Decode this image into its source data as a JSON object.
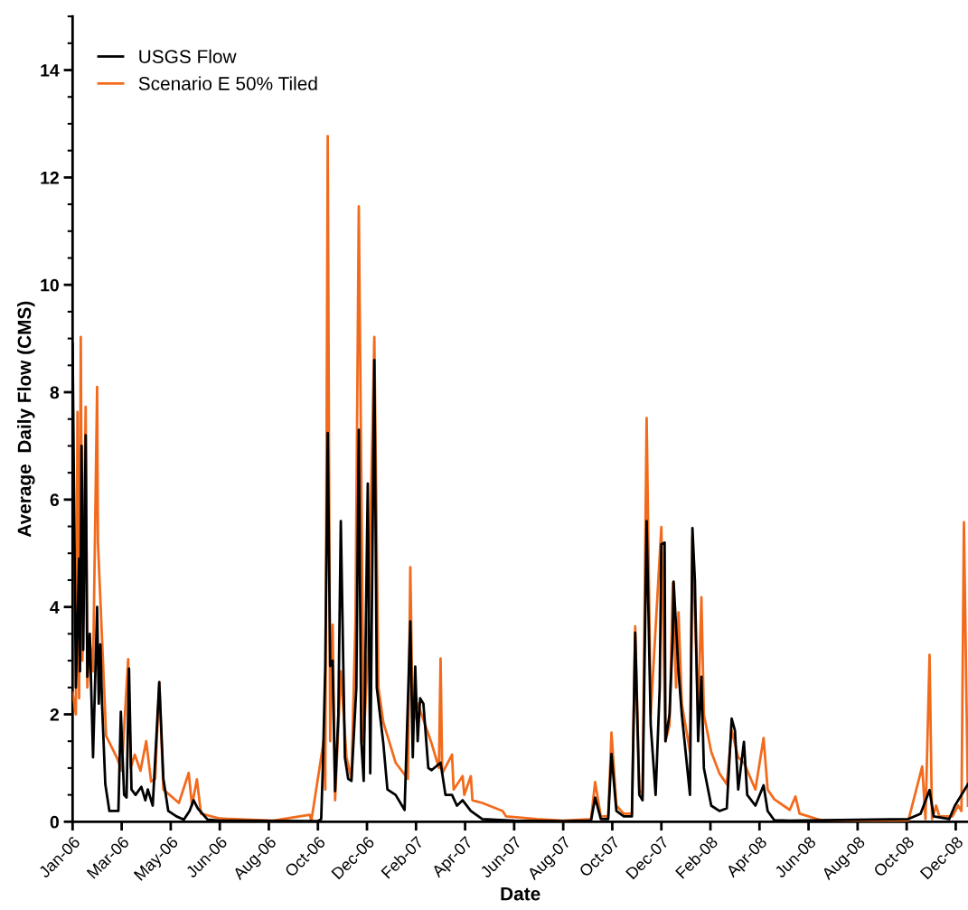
{
  "chart_data": {
    "type": "line",
    "xlabel": "Date",
    "ylabel": "Average  Daily Flow (CMS)",
    "xlim": [
      "2006-01-01",
      "2008-12-31"
    ],
    "ylim": [
      0,
      15
    ],
    "xticks": [
      {
        "value": "2006-01-01",
        "label": "Jan-06"
      },
      {
        "value": "2006-03-02",
        "label": "Mar-06"
      },
      {
        "value": "2006-05-01",
        "label": "May-06"
      },
      {
        "value": "2006-06-30",
        "label": "Jun-06"
      },
      {
        "value": "2006-08-29",
        "label": "Aug-06"
      },
      {
        "value": "2006-10-28",
        "label": "Oct-06"
      },
      {
        "value": "2006-12-27",
        "label": "Dec-06"
      },
      {
        "value": "2007-02-25",
        "label": "Feb-07"
      },
      {
        "value": "2007-04-26",
        "label": "Apr-07"
      },
      {
        "value": "2007-06-25",
        "label": "Jun-07"
      },
      {
        "value": "2007-08-24",
        "label": "Aug-07"
      },
      {
        "value": "2007-10-23",
        "label": "Oct-07"
      },
      {
        "value": "2007-12-22",
        "label": "Dec-07"
      },
      {
        "value": "2008-02-20",
        "label": "Feb-08"
      },
      {
        "value": "2008-04-20",
        "label": "Apr-08"
      },
      {
        "value": "2008-06-19",
        "label": "Jun-08"
      },
      {
        "value": "2008-08-18",
        "label": "Aug-08"
      },
      {
        "value": "2008-10-17",
        "label": "Oct-08"
      },
      {
        "value": "2008-12-16",
        "label": "Dec-08"
      }
    ],
    "yticks": [
      0,
      {
        "value": 0.5,
        "label": null
      },
      {
        "value": 1,
        "label": null
      },
      {
        "value": 1.5,
        "label": null
      },
      2,
      {
        "value": 2.5,
        "label": null
      },
      {
        "value": 3,
        "label": null
      },
      {
        "value": 3.5,
        "label": null
      },
      4,
      {
        "value": 4.5,
        "label": null
      },
      {
        "value": 5,
        "label": null
      },
      {
        "value": 5.5,
        "label": null
      },
      6,
      {
        "value": 6.5,
        "label": null
      },
      {
        "value": 7,
        "label": null
      },
      {
        "value": 7.5,
        "label": null
      },
      8,
      {
        "value": 8.5,
        "label": null
      },
      {
        "value": 9,
        "label": null
      },
      {
        "value": 9.5,
        "label": null
      },
      10,
      {
        "value": 10.5,
        "label": null
      },
      {
        "value": 11,
        "label": null
      },
      {
        "value": 11.5,
        "label": null
      },
      12,
      {
        "value": 12.5,
        "label": null
      },
      {
        "value": 13,
        "label": null
      },
      {
        "value": 13.5,
        "label": null
      },
      14,
      {
        "value": 14.5,
        "label": null
      },
      {
        "value": 15,
        "label": null
      }
    ],
    "grid": false,
    "legend": "top left",
    "marker": "none",
    "line_style": "solid",
    "series": [
      {
        "name": "USGS Flow",
        "color": "#000000",
        "x": [
          "2006-01-01",
          "2006-01-05",
          "2006-01-09",
          "2006-01-10",
          "2006-01-12",
          "2006-01-14",
          "2006-01-17",
          "2006-01-19",
          "2006-01-22",
          "2006-01-26",
          "2006-01-31",
          "2006-02-02",
          "2006-02-04",
          "2006-02-06",
          "2006-02-10",
          "2006-02-15",
          "2006-02-26",
          "2006-03-01",
          "2006-03-05",
          "2006-03-08",
          "2006-03-11",
          "2006-03-14",
          "2006-03-19",
          "2006-03-26",
          "2006-03-31",
          "2006-04-03",
          "2006-04-09",
          "2006-04-17",
          "2006-04-22",
          "2006-04-28",
          "2006-05-08",
          "2006-05-17",
          "2006-05-24",
          "2006-05-29",
          "2006-06-03",
          "2006-06-15",
          "2006-06-30",
          "2006-10-28",
          "2006-11-01",
          "2006-11-03",
          "2006-11-06",
          "2006-11-09",
          "2006-11-12",
          "2006-11-15",
          "2006-11-18",
          "2006-11-22",
          "2006-11-25",
          "2006-11-30",
          "2006-12-04",
          "2006-12-08",
          "2006-12-14",
          "2006-12-17",
          "2006-12-20",
          "2006-12-23",
          "2006-12-28",
          "2006-12-31",
          "2007-01-05",
          "2007-01-08",
          "2007-01-16",
          "2007-01-21",
          "2007-01-31",
          "2007-02-11",
          "2007-02-18",
          "2007-02-21",
          "2007-02-24",
          "2007-02-27",
          "2007-03-02",
          "2007-03-06",
          "2007-03-12",
          "2007-03-16",
          "2007-03-27",
          "2007-04-02",
          "2007-04-10",
          "2007-04-16",
          "2007-04-23",
          "2007-05-03",
          "2007-05-17",
          "2007-06-25",
          "2007-08-24",
          "2007-09-27",
          "2007-10-02",
          "2007-10-09",
          "2007-10-18",
          "2007-10-22",
          "2007-10-28",
          "2007-11-06",
          "2007-11-16",
          "2007-11-20",
          "2007-11-25",
          "2007-11-29",
          "2007-12-04",
          "2007-12-09",
          "2007-12-15",
          "2007-12-20",
          "2007-12-22",
          "2007-12-26",
          "2007-12-27",
          "2008-01-01",
          "2008-01-05",
          "2008-01-06",
          "2008-01-12",
          "2008-01-16",
          "2008-01-26",
          "2008-01-29",
          "2008-02-01",
          "2008-02-05",
          "2008-02-09",
          "2008-02-12",
          "2008-02-21",
          "2008-03-02",
          "2008-03-11",
          "2008-03-17",
          "2008-03-21",
          "2008-03-25",
          "2008-04-01",
          "2008-04-05",
          "2008-04-15",
          "2008-04-25",
          "2008-04-30",
          "2008-05-08",
          "2008-05-27",
          "2008-10-19",
          "2008-11-03",
          "2008-11-14",
          "2008-11-19",
          "2008-12-08",
          "2008-12-15",
          "2008-12-23",
          "2008-12-31"
        ],
        "values": [
          8.9,
          2.5,
          4.9,
          2.8,
          7.0,
          3.2,
          7.2,
          2.7,
          3.5,
          1.2,
          4.0,
          2.2,
          3.3,
          2.2,
          0.7,
          0.2,
          0.2,
          2.05,
          0.5,
          0.45,
          2.85,
          0.6,
          0.5,
          0.65,
          0.4,
          0.6,
          0.3,
          2.6,
          0.8,
          0.2,
          0.1,
          0.04,
          0.2,
          0.4,
          0.25,
          0.04,
          0.02,
          0.01,
          0.05,
          1.0,
          2.9,
          7.24,
          2.9,
          3.0,
          0.57,
          2.0,
          5.6,
          1.2,
          0.8,
          0.76,
          2.5,
          7.3,
          1.5,
          0.76,
          6.3,
          0.9,
          8.6,
          2.5,
          1.46,
          0.6,
          0.5,
          0.22,
          3.73,
          1.2,
          2.89,
          1.5,
          2.3,
          2.2,
          1.0,
          0.96,
          1.1,
          0.5,
          0.5,
          0.3,
          0.4,
          0.2,
          0.05,
          0.02,
          0.01,
          0.02,
          0.45,
          0.05,
          0.05,
          1.26,
          0.2,
          0.1,
          0.1,
          3.52,
          0.5,
          0.4,
          5.6,
          1.8,
          0.5,
          2.5,
          5.17,
          5.2,
          1.5,
          2.0,
          3.5,
          4.47,
          2.8,
          2.0,
          0.5,
          5.47,
          4.5,
          1.5,
          2.7,
          1.0,
          0.3,
          0.2,
          0.25,
          1.92,
          1.7,
          0.6,
          1.49,
          0.5,
          0.3,
          0.68,
          0.2,
          0.03,
          0.02,
          0.05,
          0.15,
          0.59,
          0.1,
          0.05,
          0.3,
          0.5,
          0.7
        ]
      },
      {
        "name": "Scenario E 50% Tiled",
        "color": "#f26b1d",
        "x": [
          "2006-01-01",
          "2006-01-05",
          "2006-01-07",
          "2006-01-09",
          "2006-01-11",
          "2006-01-13",
          "2006-01-17",
          "2006-01-19",
          "2006-01-22",
          "2006-01-26",
          "2006-01-31",
          "2006-02-01",
          "2006-02-11",
          "2006-02-24",
          "2006-03-02",
          "2006-03-10",
          "2006-03-13",
          "2006-03-18",
          "2006-03-25",
          "2006-04-01",
          "2006-04-07",
          "2006-04-12",
          "2006-04-17",
          "2006-04-22",
          "2006-05-11",
          "2006-05-23",
          "2006-05-27",
          "2006-06-02",
          "2006-06-07",
          "2006-06-30",
          "2006-09-03",
          "2006-10-18",
          "2006-10-20",
          "2006-11-04",
          "2006-11-06",
          "2006-11-09",
          "2006-11-12",
          "2006-11-15",
          "2006-11-18",
          "2006-11-25",
          "2006-12-02",
          "2006-12-08",
          "2006-12-13",
          "2006-12-17",
          "2006-12-23",
          "2006-12-28",
          "2007-01-05",
          "2007-01-10",
          "2007-01-16",
          "2007-01-31",
          "2007-02-15",
          "2007-02-18",
          "2007-02-21",
          "2007-02-27",
          "2007-03-06",
          "2007-03-16",
          "2007-03-25",
          "2007-03-27",
          "2007-03-29",
          "2007-04-10",
          "2007-04-12",
          "2007-04-23",
          "2007-04-25",
          "2007-05-03",
          "2007-05-05",
          "2007-05-17",
          "2007-06-11",
          "2007-06-15",
          "2007-07-23",
          "2007-08-24",
          "2007-09-27",
          "2007-10-02",
          "2007-10-09",
          "2007-10-18",
          "2007-10-22",
          "2007-10-28",
          "2007-11-06",
          "2007-11-16",
          "2007-11-20",
          "2007-11-25",
          "2007-11-29",
          "2007-12-04",
          "2007-12-09",
          "2007-12-22",
          "2007-12-27",
          "2008-01-01",
          "2008-01-05",
          "2008-01-09",
          "2008-01-12",
          "2008-01-16",
          "2008-01-26",
          "2008-01-29",
          "2008-02-05",
          "2008-02-09",
          "2008-02-12",
          "2008-02-21",
          "2008-03-02",
          "2008-03-11",
          "2008-03-17",
          "2008-03-25",
          "2008-04-01",
          "2008-04-15",
          "2008-04-25",
          "2008-04-30",
          "2008-05-08",
          "2008-05-27",
          "2008-06-03",
          "2008-06-08",
          "2008-07-04",
          "2008-08-30",
          "2008-10-19",
          "2008-11-05",
          "2008-11-09",
          "2008-11-14",
          "2008-11-17",
          "2008-11-22",
          "2008-11-26",
          "2008-12-12",
          "2008-12-19",
          "2008-12-23",
          "2008-12-26",
          "2008-12-31"
        ],
        "values": [
          2.4,
          2.0,
          7.63,
          2.3,
          9.03,
          3.0,
          7.73,
          2.5,
          3.4,
          2.8,
          8.1,
          5.2,
          1.6,
          1.2,
          0.95,
          3.03,
          1.0,
          1.25,
          0.95,
          1.5,
          0.75,
          0.8,
          2.6,
          0.6,
          0.35,
          0.91,
          0.3,
          0.79,
          0.15,
          0.06,
          0.02,
          0.13,
          0.02,
          1.5,
          0.6,
          12.77,
          1.5,
          3.67,
          0.4,
          2.8,
          1.2,
          0.8,
          3.78,
          11.46,
          1.5,
          3.1,
          9.03,
          2.5,
          1.85,
          1.1,
          0.8,
          4.74,
          1.8,
          2.2,
          1.9,
          1.46,
          1.0,
          3.04,
          0.9,
          1.25,
          0.6,
          0.85,
          0.5,
          0.85,
          0.4,
          0.35,
          0.2,
          0.1,
          0.05,
          0.02,
          0.05,
          0.74,
          0.1,
          0.1,
          1.66,
          0.3,
          0.15,
          0.15,
          3.64,
          0.6,
          0.5,
          7.52,
          2.0,
          5.49,
          1.5,
          1.8,
          4.45,
          2.5,
          3.9,
          2.2,
          1.3,
          5.3,
          2.0,
          4.18,
          2.0,
          1.3,
          0.9,
          0.7,
          1.7,
          1.2,
          1.1,
          0.6,
          1.56,
          0.6,
          0.42,
          0.22,
          0.47,
          0.15,
          0.03,
          0.01,
          0.02,
          1.03,
          0.05,
          3.11,
          0.05,
          0.3,
          0.1,
          0.1,
          0.3,
          0.2,
          5.58,
          0.3
        ]
      }
    ]
  }
}
